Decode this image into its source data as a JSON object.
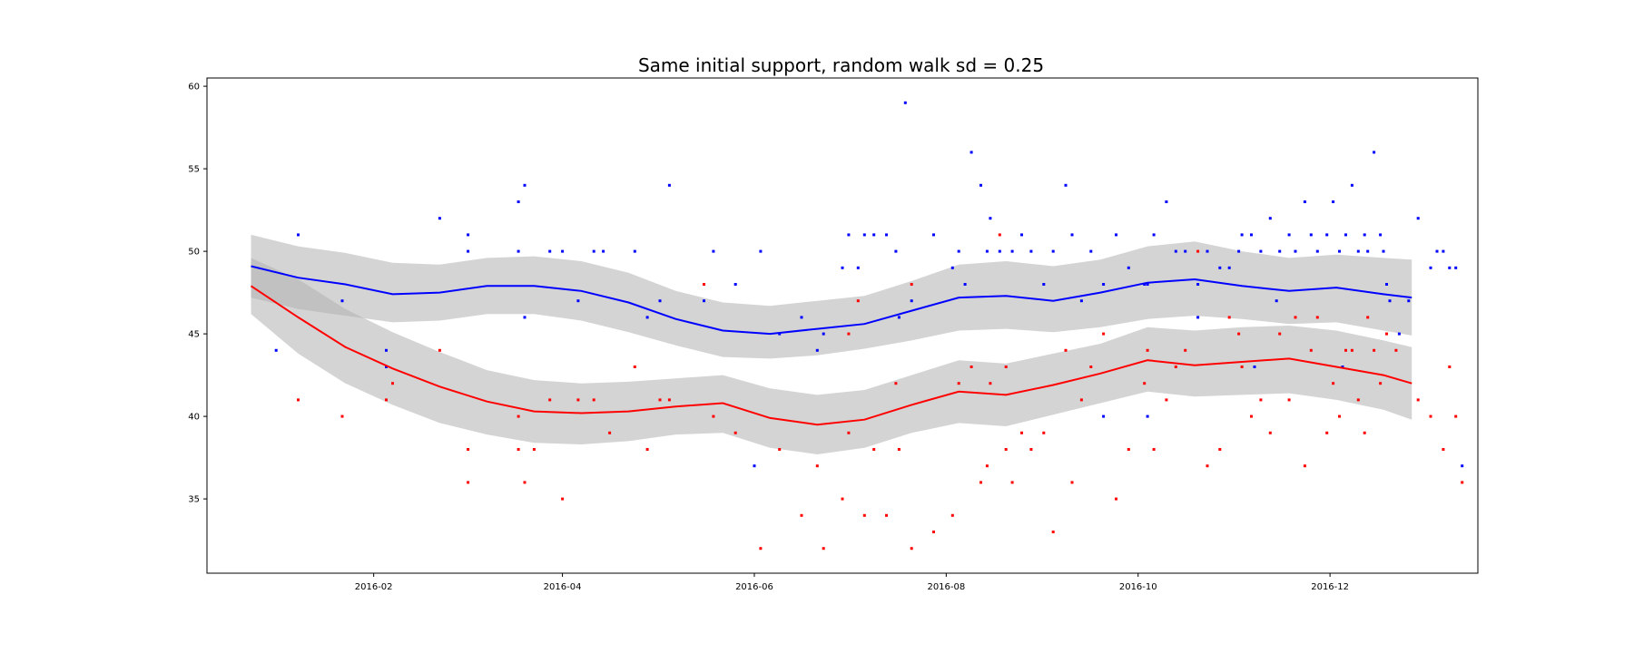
{
  "chart_data": {
    "type": "scatter",
    "title": "Same initial support, random walk sd = 0.25",
    "xlabel": "",
    "ylabel": "",
    "x_range": [
      "2015-12-10",
      "2017-01-17"
    ],
    "ylim": [
      30.5,
      60.5
    ],
    "x_ticks": [
      "2016-02",
      "2016-04",
      "2016-06",
      "2016-08",
      "2016-10",
      "2016-12"
    ],
    "y_ticks": [
      35,
      40,
      45,
      50,
      55,
      60
    ],
    "grid": false,
    "legend": "none",
    "colors": {
      "blue": "#0000ff",
      "red": "#ff0000",
      "band": "#b0b0b0",
      "band_overlap": "#8c8c8c"
    },
    "series": [
      {
        "color": "blue",
        "mean": {
          "x": [
            "2015-12-24",
            "2016-01-08",
            "2016-01-23",
            "2016-02-07",
            "2016-02-22",
            "2016-03-08",
            "2016-03-23",
            "2016-04-07",
            "2016-04-22",
            "2016-05-07",
            "2016-05-22",
            "2016-06-06",
            "2016-06-21",
            "2016-07-06",
            "2016-07-21",
            "2016-08-05",
            "2016-08-20",
            "2016-09-04",
            "2016-09-19",
            "2016-10-04",
            "2016-10-19",
            "2016-11-03",
            "2016-11-18",
            "2016-12-03",
            "2016-12-18",
            "2016-12-27"
          ],
          "y": [
            49.1,
            48.4,
            48.0,
            47.4,
            47.5,
            47.9,
            47.9,
            47.6,
            46.9,
            45.9,
            45.2,
            45.0,
            45.3,
            45.6,
            46.4,
            47.2,
            47.3,
            47.0,
            47.5,
            48.1,
            48.3,
            47.9,
            47.6,
            47.8,
            47.4,
            47.2
          ]
        },
        "band": {
          "lower": [
            47.2,
            46.5,
            46.1,
            45.7,
            45.8,
            46.2,
            46.2,
            45.8,
            45.1,
            44.3,
            43.6,
            43.5,
            43.7,
            44.1,
            44.6,
            45.2,
            45.3,
            45.1,
            45.4,
            45.9,
            46.1,
            45.9,
            45.6,
            45.7,
            45.2,
            44.9
          ],
          "upper": [
            51.0,
            50.3,
            49.9,
            49.3,
            49.2,
            49.6,
            49.7,
            49.4,
            48.7,
            47.6,
            46.9,
            46.7,
            47.0,
            47.3,
            48.2,
            49.2,
            49.4,
            49.1,
            49.5,
            50.3,
            50.6,
            50.0,
            49.6,
            49.8,
            49.6,
            49.5
          ]
        },
        "points": [
          [
            "2016-01-01",
            44
          ],
          [
            "2016-01-08",
            51
          ],
          [
            "2016-01-22",
            47
          ],
          [
            "2016-02-05",
            44
          ],
          [
            "2016-02-05",
            43
          ],
          [
            "2016-02-22",
            52
          ],
          [
            "2016-03-02",
            51
          ],
          [
            "2016-03-02",
            50
          ],
          [
            "2016-03-18",
            53
          ],
          [
            "2016-03-20",
            54
          ],
          [
            "2016-03-18",
            50
          ],
          [
            "2016-03-20",
            46
          ],
          [
            "2016-03-28",
            50
          ],
          [
            "2016-04-01",
            50
          ],
          [
            "2016-04-06",
            47
          ],
          [
            "2016-04-11",
            50
          ],
          [
            "2016-04-14",
            50
          ],
          [
            "2016-04-24",
            50
          ],
          [
            "2016-04-28",
            46
          ],
          [
            "2016-05-02",
            47
          ],
          [
            "2016-05-05",
            54
          ],
          [
            "2016-05-16",
            47
          ],
          [
            "2016-05-19",
            50
          ],
          [
            "2016-05-26",
            48
          ],
          [
            "2016-06-03",
            50
          ],
          [
            "2016-06-09",
            45
          ],
          [
            "2016-06-16",
            46
          ],
          [
            "2016-06-21",
            44
          ],
          [
            "2016-06-23",
            45
          ],
          [
            "2016-06-29",
            49
          ],
          [
            "2016-07-01",
            51
          ],
          [
            "2016-07-04",
            49
          ],
          [
            "2016-07-06",
            51
          ],
          [
            "2016-07-09",
            51
          ],
          [
            "2016-07-13",
            51
          ],
          [
            "2016-07-16",
            50
          ],
          [
            "2016-07-17",
            46
          ],
          [
            "2016-07-21",
            47
          ],
          [
            "2016-07-28",
            51
          ],
          [
            "2016-08-03",
            49
          ],
          [
            "2016-08-05",
            50
          ],
          [
            "2016-08-09",
            56
          ],
          [
            "2016-08-12",
            54
          ],
          [
            "2016-08-15",
            52
          ],
          [
            "2016-08-14",
            50
          ],
          [
            "2016-08-18",
            50
          ],
          [
            "2016-08-22",
            50
          ],
          [
            "2016-08-25",
            51
          ],
          [
            "2016-08-28",
            50
          ],
          [
            "2016-09-01",
            48
          ],
          [
            "2016-09-04",
            50
          ],
          [
            "2016-09-08",
            54
          ],
          [
            "2016-09-10",
            51
          ],
          [
            "2016-09-13",
            47
          ],
          [
            "2016-09-16",
            50
          ],
          [
            "2016-09-20",
            48
          ],
          [
            "2016-09-24",
            51
          ],
          [
            "2016-09-28",
            49
          ],
          [
            "2016-10-03",
            48
          ],
          [
            "2016-10-04",
            48
          ],
          [
            "2016-10-06",
            51
          ],
          [
            "2016-10-10",
            53
          ],
          [
            "2016-10-13",
            50
          ],
          [
            "2016-10-16",
            50
          ],
          [
            "2016-10-20",
            48
          ],
          [
            "2016-10-23",
            50
          ],
          [
            "2016-10-27",
            49
          ],
          [
            "2016-10-30",
            49
          ],
          [
            "2016-11-02",
            50
          ],
          [
            "2016-11-03",
            51
          ],
          [
            "2016-11-06",
            51
          ],
          [
            "2016-11-09",
            50
          ],
          [
            "2016-11-12",
            52
          ],
          [
            "2016-11-15",
            50
          ],
          [
            "2016-11-18",
            51
          ],
          [
            "2016-11-20",
            50
          ],
          [
            "2016-11-23",
            53
          ],
          [
            "2016-11-25",
            51
          ],
          [
            "2016-11-27",
            50
          ],
          [
            "2016-11-30",
            51
          ],
          [
            "2016-12-02",
            53
          ],
          [
            "2016-12-04",
            50
          ],
          [
            "2016-12-06",
            51
          ],
          [
            "2016-12-08",
            54
          ],
          [
            "2016-12-10",
            50
          ],
          [
            "2016-12-12",
            51
          ],
          [
            "2016-12-13",
            50
          ],
          [
            "2016-12-15",
            56
          ],
          [
            "2016-12-17",
            51
          ],
          [
            "2016-12-18",
            50
          ],
          [
            "2016-12-19",
            48
          ],
          [
            "2016-12-20",
            47
          ],
          [
            "2016-12-23",
            45
          ],
          [
            "2016-12-26",
            47
          ],
          [
            "2016-12-29",
            52
          ],
          [
            "2017-01-02",
            49
          ],
          [
            "2017-01-04",
            50
          ],
          [
            "2017-01-06",
            50
          ],
          [
            "2017-01-08",
            49
          ],
          [
            "2017-01-10",
            49
          ],
          [
            "2017-01-12",
            37
          ],
          [
            "2016-07-19",
            59
          ],
          [
            "2016-09-20",
            40
          ],
          [
            "2016-10-04",
            40
          ],
          [
            "2016-11-07",
            43
          ],
          [
            "2016-08-07",
            48
          ],
          [
            "2016-10-20",
            46
          ],
          [
            "2016-11-14",
            47
          ],
          [
            "2016-12-05",
            43
          ],
          [
            "2016-06-01",
            37
          ]
        ]
      },
      {
        "color": "red",
        "mean": {
          "x": [
            "2015-12-24",
            "2016-01-08",
            "2016-01-23",
            "2016-02-07",
            "2016-02-22",
            "2016-03-08",
            "2016-03-23",
            "2016-04-07",
            "2016-04-22",
            "2016-05-07",
            "2016-05-22",
            "2016-06-06",
            "2016-06-21",
            "2016-07-06",
            "2016-07-21",
            "2016-08-05",
            "2016-08-20",
            "2016-09-04",
            "2016-09-19",
            "2016-10-04",
            "2016-10-19",
            "2016-11-03",
            "2016-11-18",
            "2016-12-03",
            "2016-12-18",
            "2016-12-27"
          ],
          "y": [
            47.9,
            46.0,
            44.2,
            42.9,
            41.8,
            40.9,
            40.3,
            40.2,
            40.3,
            40.6,
            40.8,
            39.9,
            39.5,
            39.8,
            40.7,
            41.5,
            41.3,
            41.9,
            42.6,
            43.4,
            43.1,
            43.3,
            43.5,
            43.0,
            42.5,
            42.0
          ]
        },
        "band": {
          "lower": [
            46.2,
            43.8,
            42.0,
            40.7,
            39.6,
            38.9,
            38.4,
            38.3,
            38.5,
            38.9,
            39.0,
            38.1,
            37.7,
            38.1,
            39.0,
            39.6,
            39.4,
            40.1,
            40.8,
            41.5,
            41.2,
            41.3,
            41.4,
            41.0,
            40.4,
            39.8
          ],
          "upper": [
            49.6,
            48.3,
            46.5,
            45.1,
            43.9,
            42.8,
            42.2,
            42.0,
            42.1,
            42.3,
            42.5,
            41.7,
            41.3,
            41.6,
            42.5,
            43.4,
            43.2,
            43.8,
            44.4,
            45.4,
            45.2,
            45.4,
            45.5,
            45.2,
            44.6,
            44.2
          ]
        },
        "points": [
          [
            "2016-01-08",
            41
          ],
          [
            "2016-01-22",
            40
          ],
          [
            "2016-02-05",
            41
          ],
          [
            "2016-02-07",
            42
          ],
          [
            "2016-02-22",
            44
          ],
          [
            "2016-03-02",
            36
          ],
          [
            "2016-03-02",
            38
          ],
          [
            "2016-03-18",
            38
          ],
          [
            "2016-03-20",
            36
          ],
          [
            "2016-03-18",
            40
          ],
          [
            "2016-03-23",
            38
          ],
          [
            "2016-03-28",
            41
          ],
          [
            "2016-04-01",
            35
          ],
          [
            "2016-04-06",
            41
          ],
          [
            "2016-04-11",
            41
          ],
          [
            "2016-04-16",
            39
          ],
          [
            "2016-04-24",
            43
          ],
          [
            "2016-04-28",
            38
          ],
          [
            "2016-05-02",
            41
          ],
          [
            "2016-05-05",
            41
          ],
          [
            "2016-05-16",
            48
          ],
          [
            "2016-05-19",
            40
          ],
          [
            "2016-05-26",
            39
          ],
          [
            "2016-06-03",
            32
          ],
          [
            "2016-06-09",
            38
          ],
          [
            "2016-06-16",
            34
          ],
          [
            "2016-06-21",
            37
          ],
          [
            "2016-06-23",
            32
          ],
          [
            "2016-06-29",
            35
          ],
          [
            "2016-07-01",
            39
          ],
          [
            "2016-07-04",
            47
          ],
          [
            "2016-07-06",
            34
          ],
          [
            "2016-07-09",
            38
          ],
          [
            "2016-07-13",
            34
          ],
          [
            "2016-07-16",
            42
          ],
          [
            "2016-07-17",
            38
          ],
          [
            "2016-07-21",
            32
          ],
          [
            "2016-07-21",
            48
          ],
          [
            "2016-07-28",
            33
          ],
          [
            "2016-08-03",
            34
          ],
          [
            "2016-08-05",
            42
          ],
          [
            "2016-08-09",
            43
          ],
          [
            "2016-08-12",
            36
          ],
          [
            "2016-08-15",
            42
          ],
          [
            "2016-08-14",
            37
          ],
          [
            "2016-08-18",
            51
          ],
          [
            "2016-08-20",
            43
          ],
          [
            "2016-08-22",
            36
          ],
          [
            "2016-08-25",
            39
          ],
          [
            "2016-08-28",
            38
          ],
          [
            "2016-09-01",
            39
          ],
          [
            "2016-09-04",
            33
          ],
          [
            "2016-09-08",
            44
          ],
          [
            "2016-09-10",
            36
          ],
          [
            "2016-09-13",
            41
          ],
          [
            "2016-09-16",
            43
          ],
          [
            "2016-09-20",
            45
          ],
          [
            "2016-09-24",
            35
          ],
          [
            "2016-09-28",
            38
          ],
          [
            "2016-10-03",
            42
          ],
          [
            "2016-10-04",
            44
          ],
          [
            "2016-10-06",
            38
          ],
          [
            "2016-10-10",
            41
          ],
          [
            "2016-10-13",
            43
          ],
          [
            "2016-10-16",
            44
          ],
          [
            "2016-10-20",
            50
          ],
          [
            "2016-10-23",
            37
          ],
          [
            "2016-10-27",
            38
          ],
          [
            "2016-10-30",
            46
          ],
          [
            "2016-11-02",
            45
          ],
          [
            "2016-11-03",
            43
          ],
          [
            "2016-11-06",
            40
          ],
          [
            "2016-11-09",
            41
          ],
          [
            "2016-11-12",
            39
          ],
          [
            "2016-11-15",
            45
          ],
          [
            "2016-11-18",
            41
          ],
          [
            "2016-11-20",
            46
          ],
          [
            "2016-11-23",
            37
          ],
          [
            "2016-11-25",
            44
          ],
          [
            "2016-11-27",
            46
          ],
          [
            "2016-11-30",
            39
          ],
          [
            "2016-12-02",
            42
          ],
          [
            "2016-12-04",
            40
          ],
          [
            "2016-12-06",
            44
          ],
          [
            "2016-12-08",
            44
          ],
          [
            "2016-12-10",
            41
          ],
          [
            "2016-12-12",
            39
          ],
          [
            "2016-12-13",
            46
          ],
          [
            "2016-12-15",
            44
          ],
          [
            "2016-12-17",
            42
          ],
          [
            "2016-12-19",
            45
          ],
          [
            "2016-12-22",
            44
          ],
          [
            "2016-12-29",
            41
          ],
          [
            "2017-01-02",
            40
          ],
          [
            "2017-01-06",
            38
          ],
          [
            "2017-01-08",
            43
          ],
          [
            "2017-01-10",
            40
          ],
          [
            "2017-01-12",
            36
          ],
          [
            "2016-07-01",
            45
          ],
          [
            "2016-08-20",
            38
          ]
        ]
      }
    ]
  }
}
